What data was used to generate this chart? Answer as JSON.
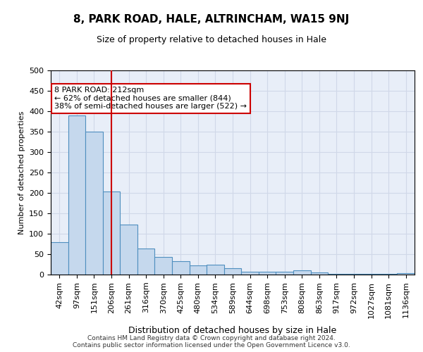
{
  "title": "8, PARK ROAD, HALE, ALTRINCHAM, WA15 9NJ",
  "subtitle": "Size of property relative to detached houses in Hale",
  "xlabel": "Distribution of detached houses by size in Hale",
  "ylabel": "Number of detached properties",
  "categories": [
    "42sqm",
    "97sqm",
    "151sqm",
    "206sqm",
    "261sqm",
    "316sqm",
    "370sqm",
    "425sqm",
    "480sqm",
    "534sqm",
    "589sqm",
    "644sqm",
    "698sqm",
    "753sqm",
    "808sqm",
    "863sqm",
    "917sqm",
    "972sqm",
    "1027sqm",
    "1081sqm",
    "1136sqm"
  ],
  "values": [
    80,
    390,
    350,
    203,
    123,
    63,
    43,
    32,
    22,
    25,
    15,
    7,
    7,
    7,
    10,
    5,
    2,
    2,
    2,
    2,
    4
  ],
  "bar_color": "#c5d8ed",
  "bar_edge_color": "#4f8fbf",
  "grid_color": "#d0d8e8",
  "background_color": "#e8eef8",
  "vline_x": 3,
  "vline_color": "#cc0000",
  "annotation_text": "8 PARK ROAD: 212sqm\n← 62% of detached houses are smaller (844)\n38% of semi-detached houses are larger (522) →",
  "annotation_box_color": "white",
  "annotation_box_edge": "#cc0000",
  "footer": "Contains HM Land Registry data © Crown copyright and database right 2024.\nContains public sector information licensed under the Open Government Licence v3.0.",
  "ylim": [
    0,
    500
  ],
  "yticks": [
    0,
    50,
    100,
    150,
    200,
    250,
    300,
    350,
    400,
    450,
    500
  ]
}
